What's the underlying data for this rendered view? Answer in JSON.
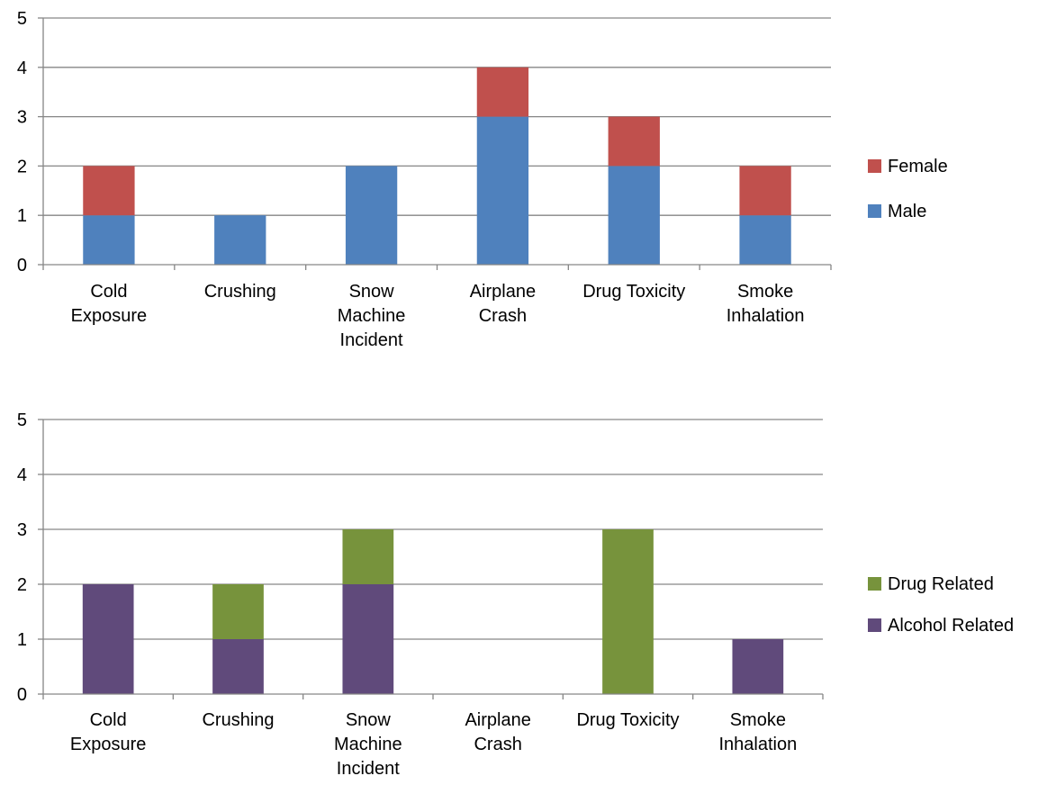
{
  "chart_data": [
    {
      "type": "bar",
      "stacked": true,
      "categories": [
        [
          "Cold",
          "Exposure"
        ],
        [
          "Crushing"
        ],
        [
          "Snow",
          "Machine",
          "Incident"
        ],
        [
          "Airplane",
          "Crash"
        ],
        [
          "Drug Toxicity"
        ],
        [
          "Smoke",
          "Inhalation"
        ]
      ],
      "series": [
        {
          "name": "Male",
          "color": "#4F81BD",
          "values": [
            1,
            1,
            2,
            3,
            2,
            1
          ]
        },
        {
          "name": "Female",
          "color": "#C0504D",
          "values": [
            1,
            0,
            0,
            1,
            1,
            1
          ]
        }
      ],
      "yticks": [
        0,
        1,
        2,
        3,
        4,
        5
      ],
      "ylim": [
        0,
        5
      ],
      "grid": true,
      "legend_order": [
        "Female",
        "Male"
      ],
      "legend_position": "right"
    },
    {
      "type": "bar",
      "stacked": true,
      "categories": [
        [
          "Cold",
          "Exposure"
        ],
        [
          "Crushing"
        ],
        [
          "Snow",
          "Machine",
          "Incident"
        ],
        [
          "Airplane",
          "Crash"
        ],
        [
          "Drug Toxicity"
        ],
        [
          "Smoke",
          "Inhalation"
        ]
      ],
      "series": [
        {
          "name": "Alcohol Related",
          "color": "#604A7B",
          "values": [
            2,
            1,
            2,
            0,
            0,
            1
          ]
        },
        {
          "name": "Drug Related",
          "color": "#77933C",
          "values": [
            0,
            1,
            1,
            0,
            3,
            0
          ]
        }
      ],
      "yticks": [
        0,
        1,
        2,
        3,
        4,
        5
      ],
      "ylim": [
        0,
        5
      ],
      "grid": true,
      "legend_order": [
        "Drug Related",
        "Alcohol Related"
      ],
      "legend_position": "right"
    }
  ]
}
